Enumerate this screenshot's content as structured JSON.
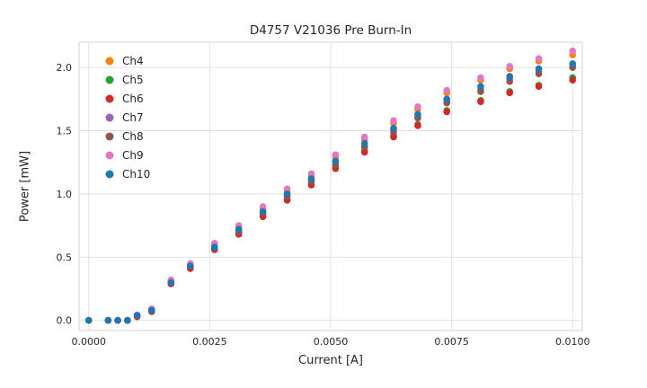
{
  "figure": {
    "title": "D4757 V21036 Pre Burn-In",
    "xlabel": "Current [A]",
    "ylabel": "Power [mW]"
  },
  "chart_data": {
    "type": "scatter",
    "title": "D4757 V21036 Pre Burn-In",
    "xlabel": "Current [A]",
    "ylabel": "Power [mW]",
    "xlim": [
      -0.0002,
      0.0102
    ],
    "ylim": [
      -0.08,
      2.2
    ],
    "xticks": [
      0.0,
      0.0025,
      0.005,
      0.0075,
      0.01
    ],
    "xtick_labels": [
      "0.0000",
      "0.0025",
      "0.0050",
      "0.0075",
      "0.0100"
    ],
    "yticks": [
      0.0,
      0.5,
      1.0,
      1.5,
      2.0
    ],
    "ytick_labels": [
      "0.0",
      "0.5",
      "1.0",
      "1.5",
      "2.0"
    ],
    "grid": true,
    "grid_color": "#e2e2e2",
    "spine_color": "#d5d5d5",
    "legend_position": "upper left",
    "x": [
      0.0,
      0.0004,
      0.0006,
      0.0008,
      0.001,
      0.0013,
      0.0017,
      0.0021,
      0.0026,
      0.0031,
      0.0036,
      0.0041,
      0.0046,
      0.0051,
      0.0057,
      0.0063,
      0.0068,
      0.0074,
      0.0081,
      0.0087,
      0.0093,
      0.01
    ],
    "series": [
      {
        "name": "Ch4",
        "color": "#ff7f0e",
        "values": [
          0.0,
          0.0,
          0.0,
          0.0,
          0.04,
          0.09,
          0.31,
          0.44,
          0.6,
          0.74,
          0.88,
          1.02,
          1.14,
          1.29,
          1.43,
          1.56,
          1.67,
          1.8,
          1.9,
          1.99,
          2.05,
          2.1
        ]
      },
      {
        "name": "Ch5",
        "color": "#2ca02c",
        "values": [
          0.0,
          0.0,
          0.0,
          0.0,
          0.03,
          0.07,
          0.29,
          0.42,
          0.56,
          0.69,
          0.83,
          0.96,
          1.08,
          1.21,
          1.34,
          1.46,
          1.55,
          1.66,
          1.74,
          1.81,
          1.86,
          1.92
        ]
      },
      {
        "name": "Ch6",
        "color": "#d62728",
        "values": [
          0.0,
          0.0,
          0.0,
          0.0,
          0.03,
          0.07,
          0.29,
          0.41,
          0.56,
          0.68,
          0.82,
          0.95,
          1.07,
          1.2,
          1.33,
          1.45,
          1.54,
          1.65,
          1.73,
          1.8,
          1.85,
          1.9
        ]
      },
      {
        "name": "Ch7",
        "color": "#9467bd",
        "values": [
          0.0,
          0.0,
          0.0,
          0.0,
          0.04,
          0.08,
          0.3,
          0.43,
          0.58,
          0.71,
          0.86,
          0.99,
          1.11,
          1.25,
          1.38,
          1.51,
          1.61,
          1.73,
          1.83,
          1.91,
          1.97,
          2.02
        ]
      },
      {
        "name": "Ch8",
        "color": "#8c564b",
        "values": [
          0.0,
          0.0,
          0.0,
          0.0,
          0.04,
          0.08,
          0.3,
          0.43,
          0.57,
          0.7,
          0.85,
          0.98,
          1.1,
          1.23,
          1.37,
          1.49,
          1.6,
          1.72,
          1.81,
          1.89,
          1.95,
          2.0
        ]
      },
      {
        "name": "Ch9",
        "color": "#e377c2",
        "values": [
          0.0,
          0.0,
          0.0,
          0.0,
          0.04,
          0.09,
          0.32,
          0.45,
          0.61,
          0.75,
          0.9,
          1.04,
          1.16,
          1.31,
          1.45,
          1.58,
          1.69,
          1.82,
          1.92,
          2.01,
          2.07,
          2.13
        ]
      },
      {
        "name": "Ch10",
        "color": "#1f77b4",
        "values": [
          0.0,
          0.0,
          0.0,
          0.0,
          0.04,
          0.08,
          0.3,
          0.43,
          0.58,
          0.72,
          0.86,
          1.0,
          1.12,
          1.26,
          1.4,
          1.52,
          1.63,
          1.75,
          1.85,
          1.93,
          1.99,
          2.03
        ]
      }
    ]
  }
}
